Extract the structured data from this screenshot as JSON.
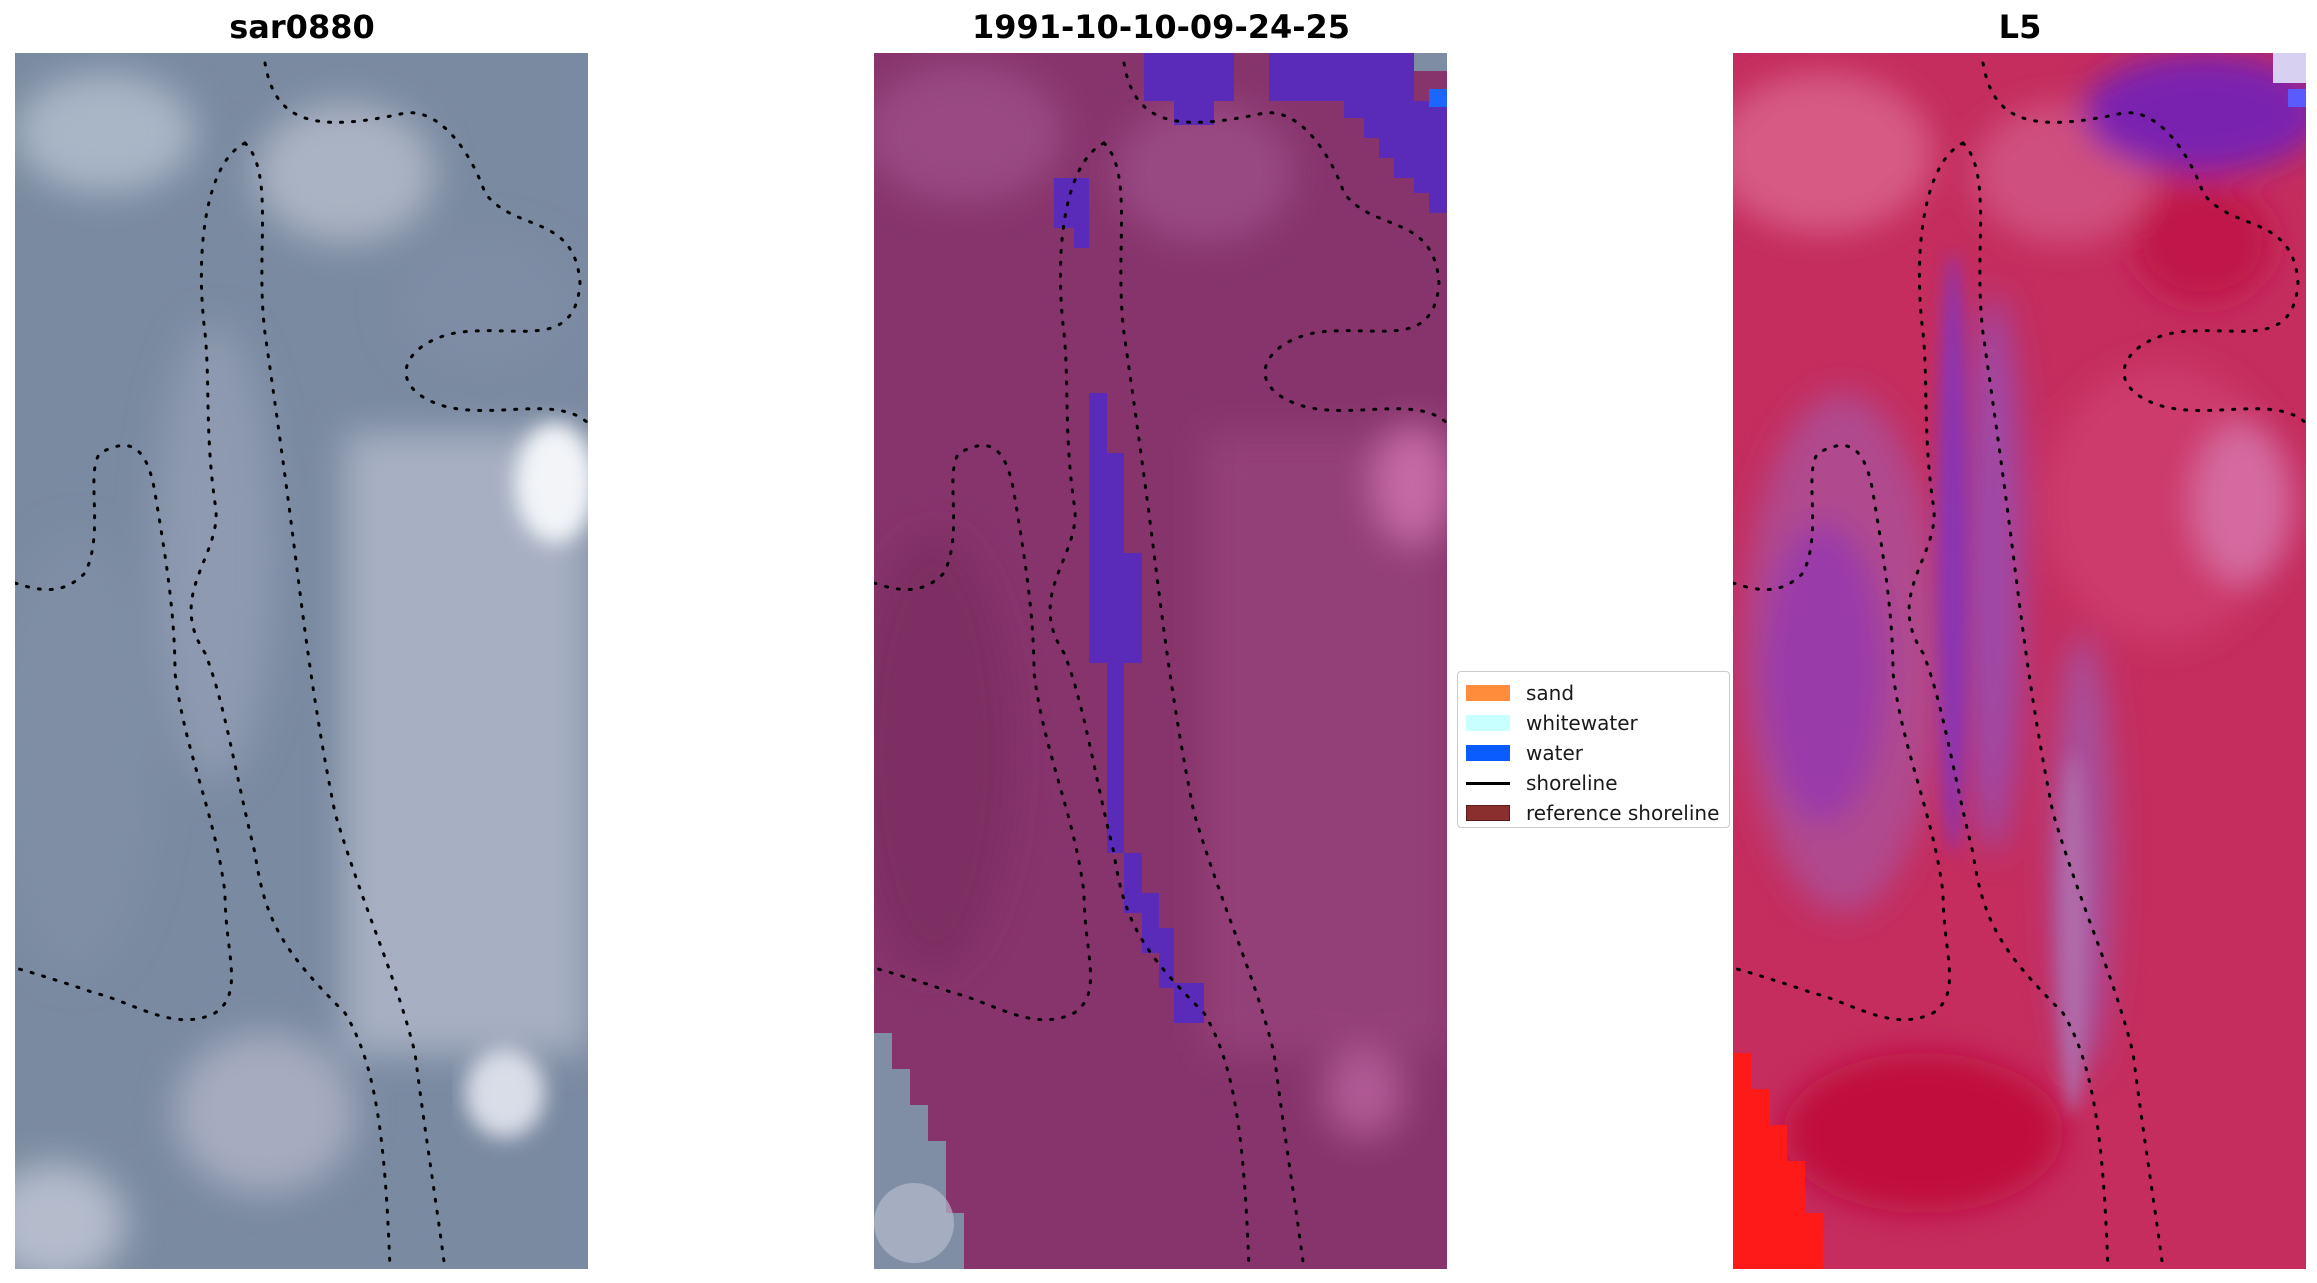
{
  "panels": [
    {
      "title": "sar0880"
    },
    {
      "title": "1991-10-10-09-24-25"
    },
    {
      "title": "L5"
    }
  ],
  "legend": {
    "items": [
      {
        "label": "sand",
        "kind": "patch",
        "color": "#ff8c3a"
      },
      {
        "label": "whitewater",
        "kind": "patch",
        "color": "#c8ffff"
      },
      {
        "label": "water",
        "kind": "patch",
        "color": "#0a5cff"
      },
      {
        "label": "shoreline",
        "kind": "line",
        "color": "#000000"
      },
      {
        "label": "reference shoreline",
        "kind": "patch",
        "color": "#8b2e2e"
      }
    ]
  },
  "colors": {
    "rgb_base": "#7f8ea3",
    "classified_base": "#8a3c72",
    "water_class": "#5a2ab8",
    "index_base": "#c82a5a",
    "index_low": "#8a3ab0",
    "index_high": "#ff1a1a"
  }
}
